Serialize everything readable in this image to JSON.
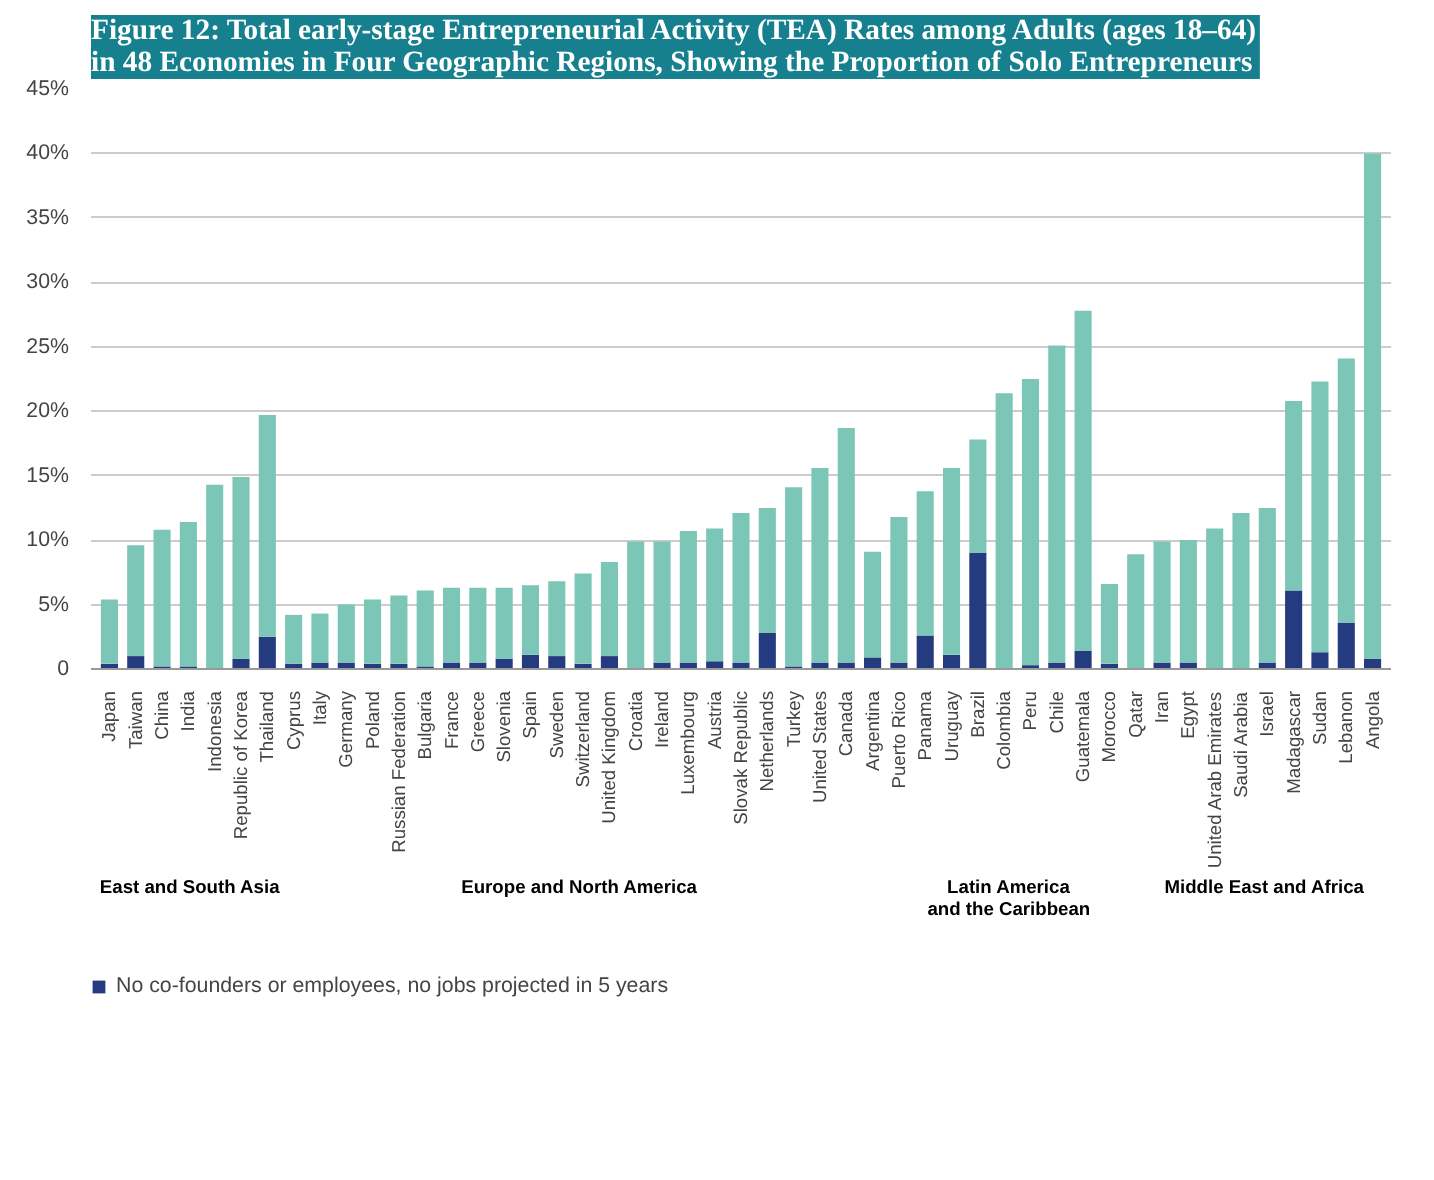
{
  "chart_data": {
    "type": "bar",
    "stacked": true,
    "title": "Figure 12: Total early-stage Entrepreneurial Activity (TEA) Rates among Adults (ages 18–64) in 48 Economies in Four Geographic Regions, Showing the Proportion of Solo Entrepreneurs",
    "categories": [
      "Japan",
      "Taiwan",
      "China",
      "India",
      "Indonesia",
      "Republic of Korea",
      "Thailand",
      "Cyprus",
      "Italy",
      "Germany",
      "Poland",
      "Russian Federation",
      "Bulgaria",
      "France",
      "Greece",
      "Slovenia",
      "Spain",
      "Sweden",
      "Switzerland",
      "United Kingdom",
      "Croatia",
      "Ireland",
      "Luxembourg",
      "Austria",
      "Slovak Republic",
      "Netherlands",
      "Turkey",
      "United States",
      "Canada",
      "Argentina",
      "Puerto Rico",
      "Panama",
      "Uruguay",
      "Brazil",
      "Colombia",
      "Peru",
      "Chile",
      "Guatemala",
      "Morocco",
      "Qatar",
      "Iran",
      "Egypt",
      "United Arab Emirates",
      "Saudi Arabia",
      "Israel",
      "Madagascar",
      "Sudan",
      "Lebanon",
      "Angola"
    ],
    "series": [
      {
        "name": "No co-founders or employees, no jobs projected in 5 years",
        "color": "#253b80",
        "values": [
          0.4,
          1.0,
          0.2,
          0.2,
          0,
          0.8,
          2.5,
          0.4,
          0.5,
          0.5,
          0.4,
          0.4,
          0.2,
          0.5,
          0.5,
          0.8,
          1.1,
          1.0,
          0.4,
          1.0,
          0,
          0.5,
          0.5,
          0.6,
          0.5,
          2.8,
          0.2,
          0.5,
          0.5,
          0.9,
          0.5,
          2.6,
          1.1,
          9.0,
          0,
          0.3,
          0.5,
          1.4,
          0.4,
          0,
          0.5,
          0.5,
          0,
          0,
          0.5,
          6.1,
          1.3,
          3.6,
          0.8
        ]
      },
      {
        "color": "#7bc6b6",
        "values": [
          5.0,
          8.6,
          10.6,
          11.2,
          14.3,
          14.1,
          17.2,
          3.8,
          3.8,
          4.5,
          5.0,
          5.3,
          5.9,
          5.8,
          5.8,
          5.5,
          5.4,
          5.8,
          7.0,
          7.3,
          9.9,
          9.4,
          10.2,
          10.3,
          11.6,
          9.7,
          13.9,
          15.1,
          18.2,
          8.2,
          11.3,
          11.2,
          14.5,
          8.8,
          21.4,
          22.2,
          24.6,
          26.4,
          6.2,
          8.9,
          9.4,
          9.5,
          10.9,
          12.1,
          12.0,
          14.7,
          21.0,
          20.5,
          39.2
        ]
      }
    ],
    "ylim": [
      0,
      45
    ],
    "yticks": [
      0,
      {
        "value": 5,
        "label": "5%"
      },
      {
        "value": 10,
        "label": "10%"
      },
      {
        "value": 15,
        "label": "15%"
      },
      {
        "value": 20,
        "label": "20%"
      },
      {
        "value": 25,
        "label": "25%"
      },
      {
        "value": 30,
        "label": "30%"
      },
      {
        "value": 35,
        "label": "35%"
      },
      {
        "value": 40,
        "label": "40%"
      },
      {
        "value": 45,
        "label": "45%"
      }
    ],
    "grid": "y",
    "legend": "bottom",
    "annotations": [
      "East and South Asia",
      "Europe and North America",
      "Latin America\nand the Caribbean",
      "Middle East and Africa"
    ]
  }
}
